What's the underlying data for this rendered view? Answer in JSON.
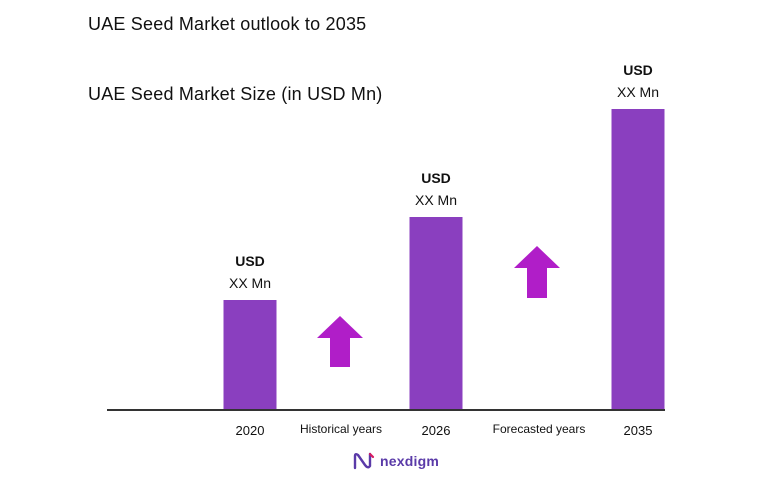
{
  "title": "UAE Seed Market outlook to 2035",
  "subtitle": "UAE Seed Market Size (in USD Mn)",
  "brand": {
    "name": "nexdigm",
    "color": "#5a3aa8"
  },
  "colors": {
    "bar": "#8a3fbf",
    "arrow": "#b01ec8",
    "axis": "#333333"
  },
  "chart_data": {
    "type": "bar",
    "categories": [
      "2020",
      "2026",
      "2035"
    ],
    "values_note_labels": [
      {
        "line1": "USD",
        "line2": "XX Mn"
      },
      {
        "line1": "USD",
        "line2": "XX Mn"
      },
      {
        "line1": "USD",
        "line2": "XX Mn"
      }
    ],
    "values": [
      110,
      193,
      301
    ],
    "ylim": [
      0,
      301
    ],
    "period_labels": [
      "Historical years",
      "Forecasted years"
    ],
    "growth_arrows": 2,
    "grid": false,
    "legend": "none",
    "title": "UAE Seed Market Size (in USD Mn)",
    "xlabel": "",
    "ylabel": ""
  }
}
